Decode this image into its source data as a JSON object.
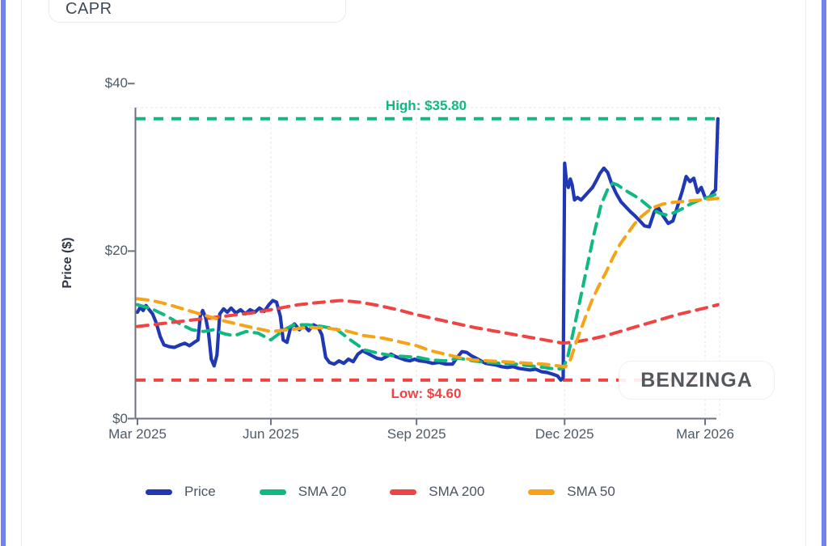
{
  "window": {
    "ticker": "CAPR"
  },
  "watermark": "BENZINGA",
  "chart_data": {
    "type": "line",
    "title": "",
    "xlabel": "",
    "ylabel": "Price ($)",
    "ylim": [
      0,
      40
    ],
    "xlim_months": [
      0,
      12.34
    ],
    "grid": "vertical-dashed",
    "legend_position": "bottom",
    "axis_color": "#6b7280",
    "tick_text_color": "#4d5a68",
    "grid_color": "#e8eaee",
    "y_ticks": [
      {
        "value": 0,
        "label": "$0"
      },
      {
        "value": 20,
        "label": "$20"
      },
      {
        "value": 40,
        "label": "$40"
      }
    ],
    "x_ticks": [
      {
        "m": 0.0,
        "label": "Mar 2025"
      },
      {
        "m": 2.82,
        "label": "Jun 2025"
      },
      {
        "m": 5.9,
        "label": "Sep 2025"
      },
      {
        "m": 9.03,
        "label": "Dec 2025"
      },
      {
        "m": 12.0,
        "label": "Mar 2026"
      }
    ],
    "high_line": {
      "value": 35.8,
      "label": "High: $35.80",
      "color": "#10b981"
    },
    "low_line": {
      "value": 4.6,
      "label": "Low: $4.60",
      "color": "#ef4444"
    },
    "series": [
      {
        "name": "Price",
        "color": "#2038b4",
        "style": "solid",
        "width": 4.2,
        "points": [
          [
            0.0,
            12.7
          ],
          [
            0.06,
            13.3
          ],
          [
            0.12,
            12.9
          ],
          [
            0.18,
            13.5
          ],
          [
            0.25,
            13.0
          ],
          [
            0.32,
            12.5
          ],
          [
            0.4,
            11.4
          ],
          [
            0.48,
            9.8
          ],
          [
            0.56,
            8.8
          ],
          [
            0.66,
            8.6
          ],
          [
            0.78,
            8.5
          ],
          [
            0.9,
            8.8
          ],
          [
            1.0,
            9.0
          ],
          [
            1.1,
            8.7
          ],
          [
            1.2,
            9.1
          ],
          [
            1.28,
            9.4
          ],
          [
            1.33,
            12.3
          ],
          [
            1.38,
            12.9
          ],
          [
            1.44,
            12.1
          ],
          [
            1.5,
            10.3
          ],
          [
            1.56,
            7.1
          ],
          [
            1.62,
            6.3
          ],
          [
            1.68,
            7.6
          ],
          [
            1.74,
            12.5
          ],
          [
            1.82,
            13.1
          ],
          [
            1.9,
            12.7
          ],
          [
            1.98,
            13.2
          ],
          [
            2.08,
            12.6
          ],
          [
            2.18,
            13.0
          ],
          [
            2.28,
            12.5
          ],
          [
            2.38,
            13.0
          ],
          [
            2.48,
            12.7
          ],
          [
            2.58,
            13.2
          ],
          [
            2.68,
            12.8
          ],
          [
            2.78,
            13.6
          ],
          [
            2.86,
            14.1
          ],
          [
            2.94,
            13.9
          ],
          [
            3.02,
            12.2
          ],
          [
            3.08,
            9.4
          ],
          [
            3.16,
            9.1
          ],
          [
            3.24,
            10.9
          ],
          [
            3.32,
            11.3
          ],
          [
            3.42,
            10.6
          ],
          [
            3.52,
            11.1
          ],
          [
            3.62,
            10.5
          ],
          [
            3.72,
            11.2
          ],
          [
            3.82,
            10.9
          ],
          [
            3.9,
            10.0
          ],
          [
            3.98,
            7.3
          ],
          [
            4.06,
            6.7
          ],
          [
            4.16,
            6.5
          ],
          [
            4.26,
            6.9
          ],
          [
            4.36,
            6.6
          ],
          [
            4.46,
            7.1
          ],
          [
            4.56,
            6.8
          ],
          [
            4.66,
            7.7
          ],
          [
            4.76,
            8.1
          ],
          [
            4.86,
            7.8
          ],
          [
            4.96,
            7.5
          ],
          [
            5.06,
            7.2
          ],
          [
            5.16,
            7.1
          ],
          [
            5.26,
            7.4
          ],
          [
            5.36,
            7.7
          ],
          [
            5.46,
            7.4
          ],
          [
            5.56,
            7.2
          ],
          [
            5.66,
            7.0
          ],
          [
            5.76,
            6.9
          ],
          [
            5.86,
            7.1
          ],
          [
            5.96,
            6.9
          ],
          [
            6.1,
            6.8
          ],
          [
            6.24,
            6.6
          ],
          [
            6.38,
            6.7
          ],
          [
            6.52,
            6.5
          ],
          [
            6.66,
            6.5
          ],
          [
            6.76,
            7.3
          ],
          [
            6.86,
            8.0
          ],
          [
            6.96,
            7.9
          ],
          [
            7.06,
            7.5
          ],
          [
            7.16,
            7.2
          ],
          [
            7.26,
            6.9
          ],
          [
            7.36,
            6.6
          ],
          [
            7.46,
            6.5
          ],
          [
            7.58,
            6.4
          ],
          [
            7.7,
            6.2
          ],
          [
            7.82,
            6.1
          ],
          [
            7.94,
            6.2
          ],
          [
            8.06,
            6.0
          ],
          [
            8.18,
            5.9
          ],
          [
            8.3,
            5.8
          ],
          [
            8.42,
            5.9
          ],
          [
            8.54,
            5.6
          ],
          [
            8.66,
            5.5
          ],
          [
            8.78,
            5.3
          ],
          [
            8.88,
            5.1
          ],
          [
            8.95,
            4.6
          ],
          [
            9.0,
            4.9
          ],
          [
            9.03,
            30.5
          ],
          [
            9.07,
            28.3
          ],
          [
            9.11,
            27.6
          ],
          [
            9.15,
            28.6
          ],
          [
            9.19,
            27.9
          ],
          [
            9.24,
            26.1
          ],
          [
            9.3,
            26.4
          ],
          [
            9.38,
            26.1
          ],
          [
            9.46,
            26.6
          ],
          [
            9.54,
            27.1
          ],
          [
            9.62,
            27.6
          ],
          [
            9.7,
            28.4
          ],
          [
            9.78,
            29.3
          ],
          [
            9.86,
            29.9
          ],
          [
            9.94,
            29.4
          ],
          [
            10.02,
            28.1
          ],
          [
            10.12,
            26.9
          ],
          [
            10.22,
            25.9
          ],
          [
            10.32,
            25.3
          ],
          [
            10.42,
            24.7
          ],
          [
            10.52,
            24.2
          ],
          [
            10.62,
            23.6
          ],
          [
            10.72,
            23.0
          ],
          [
            10.82,
            22.9
          ],
          [
            10.92,
            24.6
          ],
          [
            11.0,
            25.3
          ],
          [
            11.1,
            24.3
          ],
          [
            11.22,
            23.3
          ],
          [
            11.32,
            23.6
          ],
          [
            11.42,
            25.4
          ],
          [
            11.52,
            27.2
          ],
          [
            11.6,
            28.9
          ],
          [
            11.68,
            28.3
          ],
          [
            11.76,
            28.7
          ],
          [
            11.84,
            27.0
          ],
          [
            11.92,
            27.6
          ],
          [
            12.0,
            26.4
          ],
          [
            12.08,
            26.2
          ],
          [
            12.16,
            27.0
          ],
          [
            12.22,
            27.3
          ],
          [
            12.27,
            35.8
          ]
        ]
      },
      {
        "name": "SMA 20",
        "color": "#10b981",
        "style": "dashed",
        "width": 4,
        "points": [
          [
            0.0,
            13.6
          ],
          [
            0.3,
            13.1
          ],
          [
            0.6,
            12.3
          ],
          [
            0.9,
            11.3
          ],
          [
            1.15,
            10.6
          ],
          [
            1.4,
            10.4
          ],
          [
            1.6,
            10.6
          ],
          [
            1.85,
            10.1
          ],
          [
            2.05,
            9.9
          ],
          [
            2.3,
            10.4
          ],
          [
            2.55,
            10.2
          ],
          [
            2.82,
            9.4
          ],
          [
            3.1,
            10.6
          ],
          [
            3.3,
            11.2
          ],
          [
            3.6,
            11.2
          ],
          [
            3.9,
            11.0
          ],
          [
            4.2,
            10.7
          ],
          [
            4.5,
            9.4
          ],
          [
            4.8,
            8.2
          ],
          [
            5.1,
            7.8
          ],
          [
            5.4,
            7.5
          ],
          [
            5.7,
            7.4
          ],
          [
            5.95,
            7.3
          ],
          [
            6.2,
            7.0
          ],
          [
            6.5,
            6.9
          ],
          [
            6.8,
            7.2
          ],
          [
            7.1,
            6.9
          ],
          [
            7.4,
            6.7
          ],
          [
            7.7,
            6.6
          ],
          [
            8.0,
            6.5
          ],
          [
            8.3,
            6.3
          ],
          [
            8.6,
            6.1
          ],
          [
            8.85,
            5.9
          ],
          [
            9.0,
            6.0
          ],
          [
            9.1,
            7.5
          ],
          [
            9.2,
            10.0
          ],
          [
            9.35,
            14.0
          ],
          [
            9.5,
            18.0
          ],
          [
            9.65,
            22.0
          ],
          [
            9.8,
            25.5
          ],
          [
            9.95,
            27.5
          ],
          [
            10.05,
            28.1
          ],
          [
            10.15,
            27.9
          ],
          [
            10.3,
            27.3
          ],
          [
            10.45,
            26.8
          ],
          [
            10.6,
            26.3
          ],
          [
            10.75,
            25.6
          ],
          [
            10.9,
            24.9
          ],
          [
            11.05,
            24.5
          ],
          [
            11.2,
            24.3
          ],
          [
            11.35,
            24.6
          ],
          [
            11.5,
            25.0
          ],
          [
            11.65,
            25.5
          ],
          [
            11.8,
            25.9
          ],
          [
            11.95,
            26.2
          ],
          [
            12.1,
            26.5
          ],
          [
            12.27,
            26.9
          ]
        ]
      },
      {
        "name": "SMA 200",
        "color": "#f04343",
        "style": "dashed",
        "width": 4,
        "points": [
          [
            0.0,
            11.0
          ],
          [
            0.6,
            11.4
          ],
          [
            1.2,
            11.8
          ],
          [
            1.8,
            12.2
          ],
          [
            2.4,
            12.6
          ],
          [
            2.82,
            13.0
          ],
          [
            3.4,
            13.6
          ],
          [
            3.9,
            13.9
          ],
          [
            4.3,
            14.1
          ],
          [
            4.7,
            13.9
          ],
          [
            5.1,
            13.5
          ],
          [
            5.5,
            13.0
          ],
          [
            5.9,
            12.4
          ],
          [
            6.3,
            11.9
          ],
          [
            6.7,
            11.4
          ],
          [
            7.1,
            10.9
          ],
          [
            7.5,
            10.5
          ],
          [
            7.9,
            10.1
          ],
          [
            8.3,
            9.7
          ],
          [
            8.7,
            9.3
          ],
          [
            9.0,
            9.0
          ],
          [
            9.3,
            9.2
          ],
          [
            9.6,
            9.5
          ],
          [
            9.9,
            9.9
          ],
          [
            10.2,
            10.4
          ],
          [
            10.5,
            10.9
          ],
          [
            10.8,
            11.4
          ],
          [
            11.1,
            11.9
          ],
          [
            11.4,
            12.4
          ],
          [
            11.7,
            12.8
          ],
          [
            12.0,
            13.2
          ],
          [
            12.27,
            13.6
          ]
        ]
      },
      {
        "name": "SMA 50",
        "color": "#f5a418",
        "style": "dashed",
        "width": 4,
        "points": [
          [
            0.0,
            14.3
          ],
          [
            0.3,
            14.1
          ],
          [
            0.6,
            13.7
          ],
          [
            0.9,
            13.2
          ],
          [
            1.2,
            12.7
          ],
          [
            1.5,
            12.2
          ],
          [
            1.8,
            11.7
          ],
          [
            2.1,
            11.3
          ],
          [
            2.4,
            10.9
          ],
          [
            2.82,
            10.4
          ],
          [
            3.2,
            10.6
          ],
          [
            3.6,
            10.9
          ],
          [
            4.0,
            10.8
          ],
          [
            4.4,
            10.5
          ],
          [
            4.8,
            9.9
          ],
          [
            5.2,
            9.6
          ],
          [
            5.6,
            9.1
          ],
          [
            5.9,
            8.7
          ],
          [
            6.2,
            8.1
          ],
          [
            6.5,
            7.7
          ],
          [
            6.8,
            7.3
          ],
          [
            7.1,
            7.0
          ],
          [
            7.4,
            6.9
          ],
          [
            7.7,
            6.8
          ],
          [
            8.0,
            6.7
          ],
          [
            8.3,
            6.6
          ],
          [
            8.6,
            6.5
          ],
          [
            8.9,
            6.3
          ],
          [
            9.05,
            6.2
          ],
          [
            9.15,
            7.0
          ],
          [
            9.3,
            9.5
          ],
          [
            9.45,
            11.8
          ],
          [
            9.6,
            14.0
          ],
          [
            9.75,
            15.8
          ],
          [
            9.9,
            17.4
          ],
          [
            10.05,
            19.2
          ],
          [
            10.2,
            20.8
          ],
          [
            10.35,
            22.0
          ],
          [
            10.5,
            23.2
          ],
          [
            10.65,
            24.1
          ],
          [
            10.8,
            24.8
          ],
          [
            10.95,
            25.3
          ],
          [
            11.1,
            25.6
          ],
          [
            11.3,
            25.8
          ],
          [
            11.5,
            25.9
          ],
          [
            11.7,
            26.0
          ],
          [
            11.9,
            26.1
          ],
          [
            12.1,
            26.2
          ],
          [
            12.27,
            26.3
          ]
        ]
      }
    ]
  }
}
